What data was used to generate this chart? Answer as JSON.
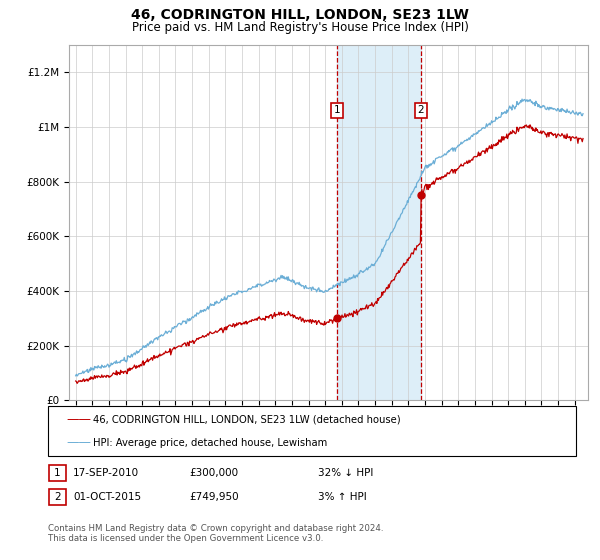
{
  "title": "46, CODRINGTON HILL, LONDON, SE23 1LW",
  "subtitle": "Price paid vs. HM Land Registry's House Price Index (HPI)",
  "title_fontsize": 10,
  "subtitle_fontsize": 8.5,
  "hpi_color": "#6baed6",
  "price_color": "#c00000",
  "background_color": "#ffffff",
  "plot_bg_color": "#ffffff",
  "shade_color": "#ddeef8",
  "grid_color": "#cccccc",
  "legend1_label": "46, CODRINGTON HILL, LONDON, SE23 1LW (detached house)",
  "legend2_label": "HPI: Average price, detached house, Lewisham",
  "transaction1_date": "17-SEP-2010",
  "transaction1_price": "£300,000",
  "transaction1_hpi": "32% ↓ HPI",
  "transaction2_date": "01-OCT-2015",
  "transaction2_price": "£749,950",
  "transaction2_hpi": "3% ↑ HPI",
  "footer": "Contains HM Land Registry data © Crown copyright and database right 2024.\nThis data is licensed under the Open Government Licence v3.0.",
  "ylim": [
    0,
    1300000
  ],
  "yticks": [
    0,
    200000,
    400000,
    600000,
    800000,
    1000000,
    1200000
  ],
  "ytick_labels": [
    "£0",
    "£200K",
    "£400K",
    "£600K",
    "£800K",
    "£1M",
    "£1.2M"
  ],
  "transaction1_year": 2010.72,
  "transaction2_year": 2015.75,
  "transaction1_value": 300000,
  "transaction2_value": 749950
}
